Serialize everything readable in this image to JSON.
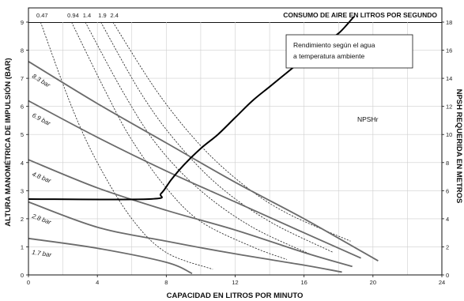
{
  "chart_data": {
    "type": "line",
    "title": "CONSUMO DE AIRE EN LITROS POR SEGUNDO",
    "xlabel": "CAPACIDAD EN LITROS POR MINUTO",
    "ylabel": "ALTURA MANOMÉTRICA DE IMPULSIÓN (BAR)",
    "y2label": "NPSH REQUERIDA EN METROS",
    "note": [
      "Rendimiento según el agua",
      "a temperatura ambiente"
    ],
    "xlim": [
      0,
      24
    ],
    "ylim": [
      0,
      9
    ],
    "y2lim": [
      0,
      18
    ],
    "xticks": [
      "0",
      "4",
      "8",
      "12",
      "16",
      "20",
      "24"
    ],
    "yticks": [
      "0",
      "1",
      "2",
      "3",
      "4",
      "5",
      "6",
      "7",
      "8",
      "9"
    ],
    "y2ticks": [
      "0",
      "2",
      "4",
      "6",
      "8",
      "10",
      "12",
      "14",
      "16",
      "18"
    ],
    "pressure_series": [
      {
        "name": "8.3 bar",
        "points": [
          [
            0,
            7.6
          ],
          [
            4,
            6.1
          ],
          [
            8,
            4.7
          ],
          [
            12,
            3.3
          ],
          [
            16,
            2.0
          ],
          [
            20.3,
            0.5
          ]
        ]
      },
      {
        "name": "6.9 bar",
        "points": [
          [
            0,
            6.2
          ],
          [
            4,
            4.9
          ],
          [
            8,
            3.7
          ],
          [
            12,
            2.6
          ],
          [
            16,
            1.5
          ],
          [
            19.3,
            0.6
          ]
        ]
      },
      {
        "name": "4.8 bar",
        "points": [
          [
            0,
            4.1
          ],
          [
            4,
            3.1
          ],
          [
            8,
            2.3
          ],
          [
            12,
            1.6
          ],
          [
            16,
            0.8
          ],
          [
            18.8,
            0.3
          ]
        ]
      },
      {
        "name": "2.8 bar",
        "points": [
          [
            0,
            2.6
          ],
          [
            4,
            1.7
          ],
          [
            8,
            1.2
          ],
          [
            12,
            0.75
          ],
          [
            16,
            0.35
          ],
          [
            18.2,
            0.1
          ]
        ]
      },
      {
        "name": "1.7 bar",
        "points": [
          [
            0,
            1.3
          ],
          [
            4,
            0.95
          ],
          [
            8,
            0.45
          ],
          [
            9.5,
            0.05
          ]
        ]
      }
    ],
    "air_consumption_series": [
      {
        "name": "0.47",
        "points": [
          [
            0.7,
            9.0
          ],
          [
            2.5,
            6.0
          ],
          [
            4.0,
            4.0
          ],
          [
            6.0,
            2.0
          ],
          [
            8.0,
            0.8
          ],
          [
            10.7,
            0.2
          ]
        ]
      },
      {
        "name": "0.94",
        "points": [
          [
            2.5,
            9.0
          ],
          [
            4.5,
            6.5
          ],
          [
            6.0,
            4.8
          ],
          [
            8.0,
            3.1
          ],
          [
            10.0,
            1.9
          ],
          [
            13.0,
            1.0
          ],
          [
            15.0,
            0.55
          ]
        ]
      },
      {
        "name": "1.4",
        "points": [
          [
            3.3,
            9.0
          ],
          [
            5.5,
            6.5
          ],
          [
            7.5,
            4.6
          ],
          [
            10.0,
            3.0
          ],
          [
            13.0,
            1.7
          ],
          [
            16.5,
            0.7
          ]
        ]
      },
      {
        "name": "1.9",
        "points": [
          [
            4.2,
            9.0
          ],
          [
            6.5,
            6.5
          ],
          [
            8.5,
            4.8
          ],
          [
            11.0,
            3.2
          ],
          [
            14.0,
            1.9
          ],
          [
            17.7,
            0.8
          ]
        ]
      },
      {
        "name": "2.4",
        "points": [
          [
            4.9,
            9.0
          ],
          [
            7.5,
            6.5
          ],
          [
            10.0,
            4.6
          ],
          [
            12.5,
            3.2
          ],
          [
            15.0,
            2.2
          ],
          [
            18.7,
            1.2
          ]
        ]
      }
    ],
    "npshr": {
      "name": "NPSHr",
      "points": [
        [
          0,
          2.7
        ],
        [
          7.0,
          2.7
        ],
        [
          7.7,
          2.9
        ],
        [
          8.3,
          3.4
        ],
        [
          9.0,
          3.9
        ],
        [
          10.0,
          4.5
        ],
        [
          11.0,
          5.0
        ],
        [
          12.0,
          5.6
        ],
        [
          13.0,
          6.2
        ],
        [
          14.0,
          6.7
        ],
        [
          15.0,
          7.2
        ],
        [
          16.0,
          7.7
        ],
        [
          17.0,
          8.2
        ],
        [
          18.0,
          8.6
        ],
        [
          18.9,
          9.2
        ]
      ]
    },
    "grid": true
  }
}
